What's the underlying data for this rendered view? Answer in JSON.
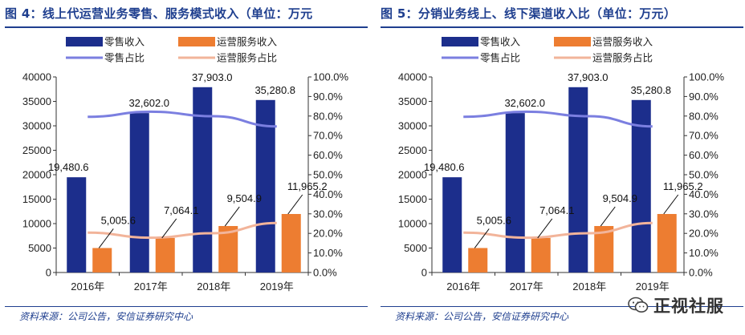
{
  "colors": {
    "retail_bar": "#1c2e8c",
    "service_bar": "#ed7d31",
    "retail_line": "#7b7fe0",
    "service_line": "#f2b49a",
    "title": "#1f3f8f"
  },
  "watermark": {
    "text": "正视社服",
    "icon": "wechat-icon"
  },
  "panels": [
    {
      "title": "图 4：线上代运营业务零售、服务模式收入（单位：万元",
      "source": "资料来源：公司公告，安信证券研究中心"
    },
    {
      "title": "图 5：分销业务线上、线下渠道收入比（单位：万元）",
      "source": "资料来源：公司公告，安信证券研究中心"
    }
  ],
  "chart_data": [
    {
      "type": "bar",
      "categories": [
        "2016年",
        "2017年",
        "2018年",
        "2019年"
      ],
      "series": [
        {
          "name": "零售收入",
          "kind": "bar",
          "axis": "left",
          "values": [
            19480.6,
            32602.0,
            37903.0,
            35280.8
          ],
          "labels": [
            "19,480.6",
            "32,602.0",
            "37,903.0",
            "35,280.8"
          ]
        },
        {
          "name": "运营服务收入",
          "kind": "bar",
          "axis": "left",
          "values": [
            5005.6,
            7064.1,
            9504.9,
            11965.2
          ],
          "labels": [
            "5,005.6",
            "7,064.1",
            "9,504.9",
            "11,965.2"
          ]
        },
        {
          "name": "零售占比",
          "kind": "line",
          "axis": "right",
          "values": [
            79.6,
            82.2,
            79.9,
            74.7
          ]
        },
        {
          "name": "运营服务占比",
          "kind": "line",
          "axis": "right",
          "values": [
            20.4,
            17.8,
            20.1,
            25.3
          ]
        }
      ],
      "y_left": {
        "min": 0,
        "max": 40000,
        "ticks": [
          "0",
          "5000",
          "10000",
          "15000",
          "20000",
          "25000",
          "30000",
          "35000",
          "40000"
        ]
      },
      "y_right": {
        "min": 0,
        "max": 100,
        "ticks": [
          "0.0%",
          "10.0%",
          "20.0%",
          "30.0%",
          "40.0%",
          "50.0%",
          "60.0%",
          "70.0%",
          "80.0%",
          "90.0%",
          "100.0%"
        ]
      },
      "legend_position": "top",
      "grid": false
    },
    {
      "type": "bar",
      "categories": [
        "2016年",
        "2017年",
        "2018年",
        "2019年"
      ],
      "series": [
        {
          "name": "零售收入",
          "kind": "bar",
          "axis": "left",
          "values": [
            19480.6,
            32602.0,
            37903.0,
            35280.8
          ],
          "labels": [
            "19,480.6",
            "32,602.0",
            "37,903.0",
            "35,280.8"
          ]
        },
        {
          "name": "运营服务收入",
          "kind": "bar",
          "axis": "left",
          "values": [
            5005.6,
            7064.1,
            9504.9,
            11965.2
          ],
          "labels": [
            "5,005.6",
            "7,064.1",
            "9,504.9",
            "11,965.2"
          ]
        },
        {
          "name": "零售占比",
          "kind": "line",
          "axis": "right",
          "values": [
            79.6,
            82.2,
            79.9,
            74.7
          ]
        },
        {
          "name": "运营服务占比",
          "kind": "line",
          "axis": "right",
          "values": [
            20.4,
            17.8,
            20.1,
            25.3
          ]
        }
      ],
      "y_left": {
        "min": 0,
        "max": 40000,
        "ticks": [
          "0",
          "5000",
          "10000",
          "15000",
          "20000",
          "25000",
          "30000",
          "35000",
          "40000"
        ]
      },
      "y_right": {
        "min": 0,
        "max": 100,
        "ticks": [
          "0.0%",
          "10.0%",
          "20.0%",
          "30.0%",
          "40.0%",
          "50.0%",
          "60.0%",
          "70.0%",
          "80.0%",
          "90.0%",
          "100.0%"
        ]
      },
      "legend_position": "top",
      "grid": false
    }
  ]
}
